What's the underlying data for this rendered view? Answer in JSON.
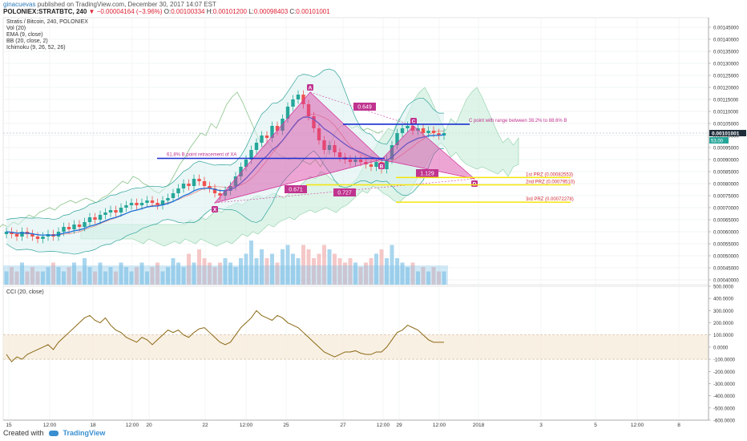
{
  "header": {
    "user": "ginacuevas",
    "published": "published on TradingView.com, December 30, 2017 14:07 EST",
    "symbol": "POLONIEX:STRATBTC, 240",
    "change": "−0.00004164 (−3.96%)",
    "open_label": "O:",
    "open": "0.00100334",
    "high_label": "H:",
    "high": "0.00101200",
    "low_label": "L:",
    "low": "0.00098403",
    "close_label": "C:",
    "close": "0.00101001"
  },
  "legend": {
    "title": "Stratis / Bitcoin, 240, POLONIEX",
    "vol": "Vol (20)",
    "ema": "EMA (9, close)",
    "bb": "BB (20, close, 2)",
    "ichimoku": "Ichimoku (9, 26, 52, 26)",
    "cci": "CCI (20, close)"
  },
  "price_label": "0.00101001",
  "price_label2": "53.00",
  "annotations": {
    "c_point": "C point with range between 38.2% to 88.6% B",
    "b_point": "61.8% B point retracement of  XA",
    "r649": "0.649",
    "r671": "0.671",
    "r727": "0.727",
    "r1129": "1.129",
    "prz1": "1st PRZ (0.00082553)",
    "prz2": "2nd PRZ (0.00079510)",
    "prz3": "3rd PRZ (0.00072278)",
    "X": "X",
    "A": "A",
    "B": "B",
    "C": "C",
    "D": "D"
  },
  "colors": {
    "up": "#26a69a",
    "down": "#ef5350",
    "pattern": "#d63aa0",
    "prz": "#f5e50a",
    "level": "#1a2fd1",
    "cci": "#8b6914",
    "ema": "#1e6fd9"
  },
  "footer": {
    "created": "Created with",
    "brand": "TradingView"
  },
  "chart_data": {
    "type": "candlestick",
    "title": "Stratis / Bitcoin, 240, POLONIEX",
    "price_axis": {
      "ticks": [
        "0.00145000",
        "0.00140000",
        "0.00135000",
        "0.00130000",
        "0.00125000",
        "0.00120000",
        "0.00115000",
        "0.00110000",
        "0.00105000",
        "0.00100000",
        "0.00095000",
        "0.00090000",
        "0.00085000",
        "0.00080000",
        "0.00075000",
        "0.00070000",
        "0.00065000",
        "0.00060000",
        "0.00055000",
        "0.00050000",
        "0.00045000",
        "0.00040000"
      ],
      "range": [
        0.00038,
        0.00149
      ]
    },
    "cci_axis": {
      "ticks": [
        "500.0000",
        "400.0000",
        "300.0000",
        "200.0000",
        "100.0000",
        "0.0000",
        "-100.0000",
        "-200.0000",
        "-300.0000",
        "-400.0000",
        "-500.0000",
        "-600.0000"
      ],
      "range": [
        -600,
        500
      ],
      "band": [
        -100,
        100
      ]
    },
    "time_axis": [
      "15",
      "12:00",
      "18",
      "12:00",
      "20",
      "22",
      "12:00",
      "25",
      "27",
      "12:00",
      "29",
      "12:00",
      "2018",
      "3",
      "5",
      "12:00",
      "8"
    ],
    "closes": [
      0.0006,
      0.00059,
      0.00058,
      0.0006,
      0.00059,
      0.00058,
      0.00057,
      0.00058,
      0.00059,
      0.00058,
      0.0006,
      0.00062,
      0.00061,
      0.00063,
      0.00062,
      0.00064,
      0.00066,
      0.00065,
      0.00067,
      0.00068,
      0.00069,
      0.00068,
      0.0007,
      0.00071,
      0.00072,
      0.00071,
      0.00072,
      0.00073,
      0.00072,
      0.00071,
      0.00073,
      0.00074,
      0.00076,
      0.00078,
      0.0008,
      0.00079,
      0.00082,
      0.00081,
      0.00079,
      0.00078,
      0.00076,
      0.00075,
      0.00077,
      0.00079,
      0.00083,
      0.00087,
      0.0009,
      0.00094,
      0.00097,
      0.001,
      0.00099,
      0.00104,
      0.00102,
      0.00107,
      0.00112,
      0.00115,
      0.00117,
      0.00113,
      0.00108,
      0.00103,
      0.00098,
      0.00094,
      0.00096,
      0.00093,
      0.00091,
      0.0009,
      0.00089,
      0.0009,
      0.00089,
      0.00088,
      0.00087,
      0.00089,
      0.00086,
      0.0009,
      0.00096,
      0.00101,
      0.00103,
      0.00104,
      0.00102,
      0.00103,
      0.00101,
      0.00102,
      0.00101,
      0.001,
      0.00101
    ],
    "cci": [
      -60,
      -120,
      -80,
      -100,
      -60,
      -40,
      -20,
      0,
      20,
      -20,
      40,
      80,
      120,
      160,
      200,
      240,
      260,
      220,
      200,
      240,
      180,
      140,
      120,
      80,
      60,
      40,
      80,
      60,
      20,
      60,
      100,
      140,
      120,
      140,
      100,
      80,
      120,
      150,
      160,
      120,
      80,
      40,
      20,
      40,
      100,
      160,
      200,
      240,
      300,
      260,
      240,
      220,
      260,
      240,
      200,
      180,
      160,
      120,
      80,
      40,
      0,
      -40,
      -60,
      -80,
      -60,
      -40,
      -40,
      -30,
      -50,
      -60,
      -60,
      -40,
      -40,
      0,
      60,
      120,
      140,
      180,
      160,
      140,
      100,
      60,
      40,
      40,
      40
    ],
    "volume": [
      0.3,
      0.4,
      0.3,
      0.5,
      0.3,
      0.4,
      0.3,
      0.3,
      0.4,
      0.5,
      0.4,
      0.3,
      0.4,
      0.5,
      0.3,
      0.6,
      0.4,
      0.3,
      0.5,
      0.3,
      0.4,
      0.3,
      0.5,
      0.4,
      0.3,
      0.4,
      0.5,
      0.3,
      0.4,
      0.5,
      0.3,
      0.4,
      0.6,
      0.5,
      0.4,
      0.7,
      0.5,
      0.8,
      0.6,
      0.5,
      0.4,
      0.5,
      0.6,
      0.5,
      0.4,
      0.6,
      0.7,
      1.0,
      0.6,
      0.8,
      0.6,
      0.7,
      0.5,
      0.8,
      0.9,
      0.7,
      0.6,
      0.9,
      0.8,
      0.6,
      0.7,
      0.9,
      0.8,
      0.7,
      0.6,
      0.5,
      0.6,
      0.5,
      0.4,
      0.5,
      0.6,
      0.7,
      0.8,
      0.6,
      0.9,
      0.6,
      0.5,
      0.4,
      0.5,
      0.3,
      0.4,
      0.3,
      0.4,
      0.3,
      0.3
    ],
    "harmonic": {
      "X": 0.00072,
      "A": 0.00118,
      "B": 0.0009,
      "C": 0.00104,
      "D": 0.00082
    },
    "levels": {
      "b_retracement": 0.000905,
      "c_level": 0.001047,
      "prz1": 0.00082553,
      "prz2": 0.0007951,
      "prz3": 0.00072278
    },
    "last_price": 0.00101001
  }
}
